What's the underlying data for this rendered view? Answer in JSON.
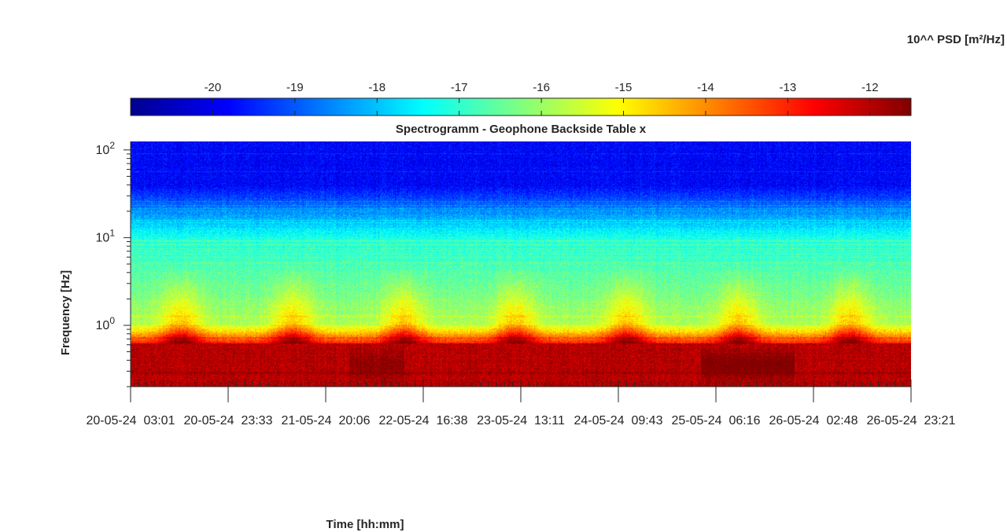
{
  "chart_data": {
    "type": "heatmap",
    "title": "Spectrogramm - Geophone Backside Table x",
    "xlabel": "Time [hh:mm]",
    "ylabel": "Frequency [Hz]",
    "y_scale": "log",
    "ylim": [
      0.2,
      125
    ],
    "y_ticks": [
      {
        "value": 1,
        "base": "10",
        "exp": "0"
      },
      {
        "value": 10,
        "base": "10",
        "exp": "1"
      },
      {
        "value": 100,
        "base": "10",
        "exp": "2"
      }
    ],
    "x_tick_labels": [
      "20-05-24  03:01",
      "20-05-24  23:33",
      "21-05-24  20:06",
      "22-05-24  16:38",
      "23-05-24  13:11",
      "24-05-24  09:43",
      "25-05-24  06:16",
      "26-05-24  02:48",
      "26-05-24  23:21"
    ],
    "colorbar": {
      "label": "10^^ PSD [m²/Hz]",
      "location": "top",
      "colormap": "jet",
      "range": [
        -21,
        -11.5
      ],
      "ticks": [
        "-20",
        "-19",
        "-18",
        "-17",
        "-16",
        "-15",
        "-14",
        "-13",
        "-12"
      ]
    },
    "grid": false,
    "day_activity_peaks": 7,
    "dominant_band_hz": [
      0.2,
      0.65
    ],
    "dominant_band_log_psd": -12.0,
    "high_freq_log_psd": -19.8
  }
}
